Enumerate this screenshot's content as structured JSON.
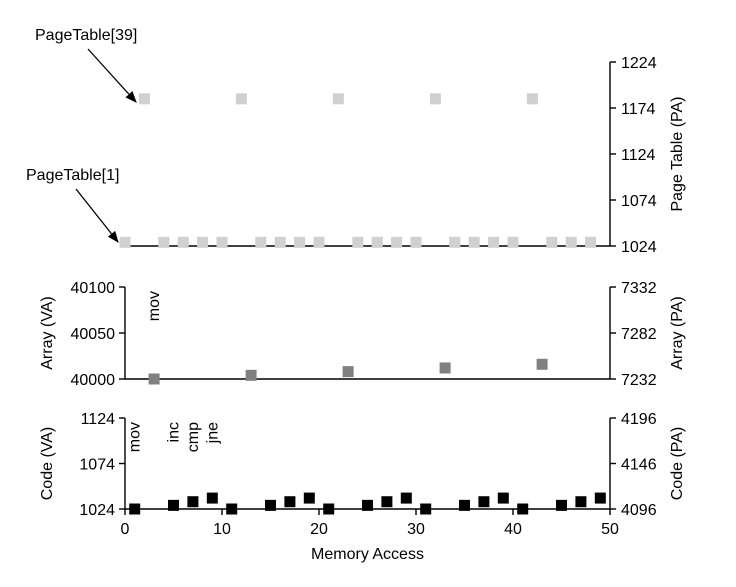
{
  "chart_data": [
    {
      "type": "scatter",
      "panel": "page-table",
      "ylabel_right": "Page Table (PA)",
      "ylim": [
        1024,
        1224
      ],
      "right_ticks": [
        "1224",
        "1174",
        "1124",
        "1074",
        "1024"
      ],
      "right_tick_values": [
        1224,
        1174,
        1124,
        1074,
        1024
      ],
      "color": "#d0d0d0",
      "annotations": [
        {
          "text": "PageTable[39]",
          "x": 2,
          "y": 1184
        },
        {
          "text": "PageTable[1]",
          "x": 0,
          "y": 1028
        }
      ],
      "series": [
        {
          "name": "PageTable[39]",
          "x": [
            2,
            12,
            22,
            32,
            42
          ],
          "y": [
            1184,
            1184,
            1184,
            1184,
            1184
          ]
        },
        {
          "name": "PageTable[1]",
          "x": [
            0,
            4,
            6,
            8,
            10,
            14,
            16,
            18,
            20,
            24,
            26,
            28,
            30,
            34,
            36,
            38,
            40,
            44,
            46,
            48
          ],
          "y": [
            1028,
            1028,
            1028,
            1028,
            1028,
            1028,
            1028,
            1028,
            1028,
            1028,
            1028,
            1028,
            1028,
            1028,
            1028,
            1028,
            1028,
            1028,
            1028,
            1028
          ]
        }
      ]
    },
    {
      "type": "scatter",
      "panel": "array",
      "ylabel_left": "Array (VA)",
      "ylabel_right": "Array (PA)",
      "ylim": [
        40000,
        40100
      ],
      "left_ticks": [
        "40100",
        "40050",
        "40000"
      ],
      "left_tick_values": [
        40100,
        40050,
        40000
      ],
      "right_ticks": [
        "7332",
        "7282",
        "7232"
      ],
      "right_tick_values": [
        40100,
        40050,
        40000
      ],
      "color": "#808080",
      "instructions": [
        {
          "text": "mov",
          "x": 3
        }
      ],
      "series": [
        {
          "name": "Array",
          "x": [
            3,
            13,
            23,
            33,
            43
          ],
          "y": [
            40000,
            40004,
            40008,
            40012,
            40016
          ]
        }
      ]
    },
    {
      "type": "scatter",
      "panel": "code",
      "ylabel_left": "Code (VA)",
      "ylabel_right": "Code (PA)",
      "xlabel": "Memory Access",
      "xlim": [
        0,
        50
      ],
      "x_ticks": [
        "0",
        "10",
        "20",
        "30",
        "40",
        "50"
      ],
      "x_tick_values": [
        0,
        10,
        20,
        30,
        40,
        50
      ],
      "ylim": [
        1024,
        1124
      ],
      "left_ticks": [
        "1124",
        "1074",
        "1024"
      ],
      "left_tick_values": [
        1124,
        1074,
        1024
      ],
      "right_ticks": [
        "4196",
        "4146",
        "4096"
      ],
      "right_tick_values": [
        1124,
        1074,
        1024
      ],
      "color": "#000000",
      "instructions": [
        {
          "text": "mov",
          "x": 1
        },
        {
          "text": "inc",
          "x": 5
        },
        {
          "text": "cmp",
          "x": 7
        },
        {
          "text": "jne",
          "x": 9
        }
      ],
      "series": [
        {
          "name": "Code",
          "x": [
            1,
            5,
            7,
            9,
            11,
            15,
            17,
            19,
            21,
            25,
            27,
            29,
            31,
            35,
            37,
            39,
            41,
            45,
            47,
            49
          ],
          "y": [
            1024,
            1028,
            1032,
            1036,
            1024,
            1028,
            1032,
            1036,
            1024,
            1028,
            1032,
            1036,
            1024,
            1028,
            1032,
            1036,
            1024,
            1028,
            1032,
            1036
          ]
        }
      ]
    }
  ]
}
